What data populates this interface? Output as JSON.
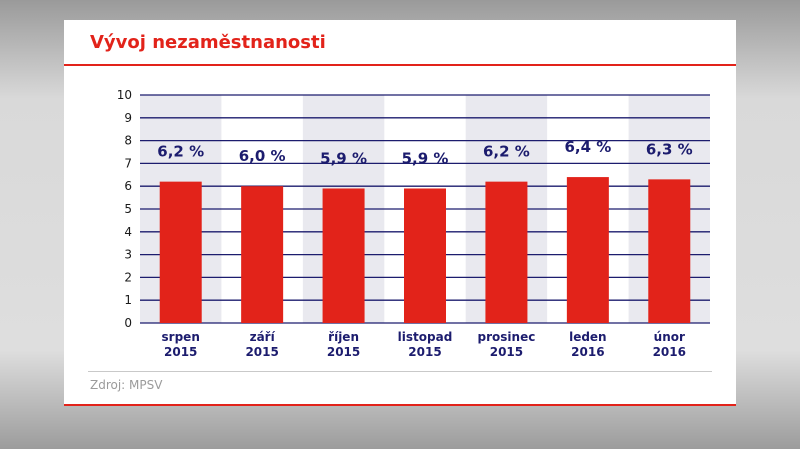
{
  "header": {
    "title": "Vývoj nezaměstnanosti"
  },
  "footer": {
    "source": "Zdroj: MPSV"
  },
  "colors": {
    "accent": "#e2231a",
    "bar": "#e2231a",
    "label": "#1c1c6e",
    "grid": "#1c1c6e",
    "band": "#e9e9ef"
  },
  "chart_data": {
    "type": "bar",
    "title": "Vývoj nezaměstnanosti",
    "xlabel": "",
    "ylabel": "",
    "ylim": [
      0,
      10
    ],
    "yticks": [
      0,
      1,
      2,
      3,
      4,
      5,
      6,
      7,
      8,
      9,
      10
    ],
    "grid": true,
    "categories": [
      [
        "srpen",
        "2015"
      ],
      [
        "září",
        "2015"
      ],
      [
        "říjen",
        "2015"
      ],
      [
        "listopad",
        "2015"
      ],
      [
        "prosinec",
        "2015"
      ],
      [
        "leden",
        "2016"
      ],
      [
        "únor",
        "2016"
      ]
    ],
    "values": [
      6.2,
      6.0,
      5.9,
      5.9,
      6.2,
      6.4,
      6.3
    ],
    "value_labels": [
      "6,2 %",
      "6,0 %",
      "5,9 %",
      "5,9 %",
      "6,2 %",
      "6,4 %",
      "6,3 %"
    ]
  }
}
